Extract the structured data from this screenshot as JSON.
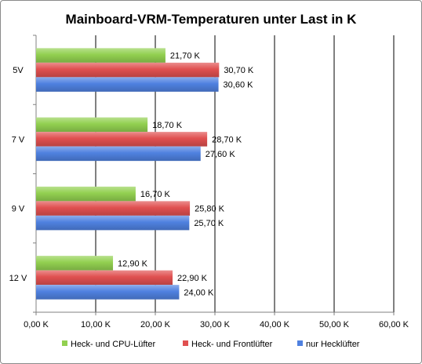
{
  "chart_data": {
    "type": "bar",
    "orientation": "horizontal",
    "title": "Mainboard-VRM-Temperaturen unter Last in K",
    "categories": [
      "5V",
      "7 V",
      "9 V",
      "12 V"
    ],
    "series": [
      {
        "name": "Heck- und CPU-Lüfter",
        "color": "#92d050",
        "values": [
          21.7,
          18.7,
          16.7,
          12.9
        ],
        "labels": [
          "21,70 K",
          "18,70 K",
          "16,70 K",
          "12,90 K"
        ]
      },
      {
        "name": "Heck- und Frontlüfter",
        "color": "#e05050",
        "values": [
          30.7,
          28.7,
          25.8,
          22.9
        ],
        "labels": [
          "30,70 K",
          "28,70 K",
          "25,80 K",
          "22,90 K"
        ]
      },
      {
        "name": "nur Hecklüfter",
        "color": "#4f81e0",
        "values": [
          30.6,
          27.6,
          25.7,
          24.0
        ],
        "labels": [
          "30,60 K",
          "27,60 K",
          "25,70 K",
          "24,00 K"
        ]
      }
    ],
    "xlim": [
      0,
      60
    ],
    "x_ticks": [
      0,
      10,
      20,
      30,
      40,
      50,
      60
    ],
    "x_tick_labels": [
      "0,00 K",
      "10,00 K",
      "20,00 K",
      "30,00 K",
      "40,00 K",
      "50,00 K",
      "60,00 K"
    ],
    "grid": true,
    "legend": "bottom"
  }
}
